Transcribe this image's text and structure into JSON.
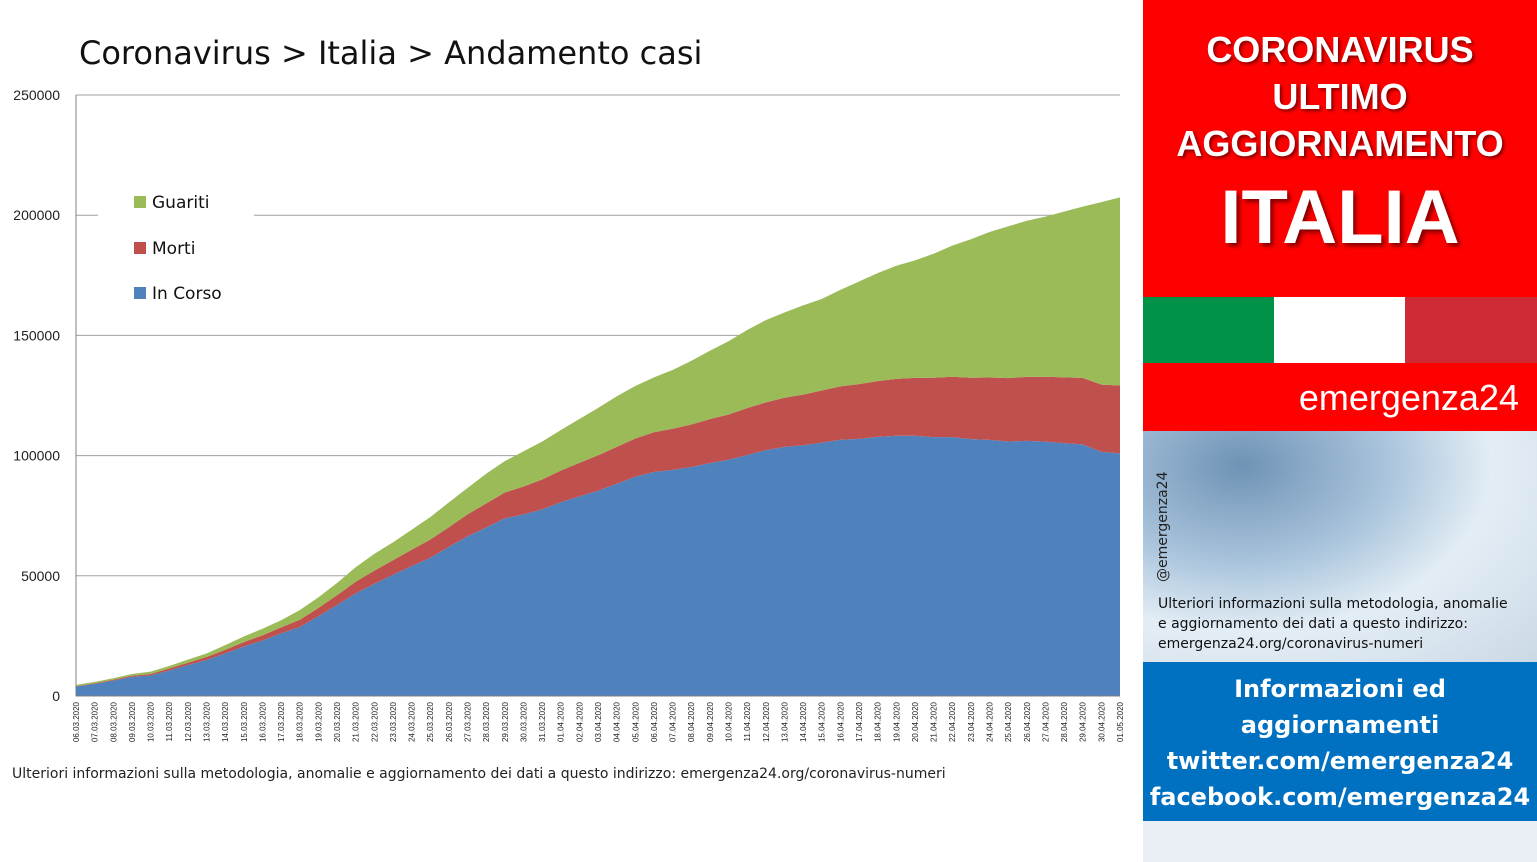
{
  "chart_title": "Coronavirus > Italia > Andamento casi",
  "footnote": "Ulteriori informazioni sulla metodologia, anomalie e aggiornamento dei dati a questo indirizzo: emergenza24.org/coronavirus-numeri",
  "colors": {
    "guariti": "#9bbb59",
    "morti": "#c0504d",
    "in_corso": "#4f81bd",
    "banner_red": "#ff0000",
    "info_blue": "#0070c0",
    "flag_green": "#009246",
    "flag_white": "#ffffff",
    "flag_red": "#ce2b37"
  },
  "chart_data": {
    "type": "area",
    "stacked": true,
    "title": "Coronavirus > Italia > Andamento casi",
    "xlabel": "",
    "ylabel": "",
    "ylim": [
      0,
      250000
    ],
    "yticks": [
      0,
      50000,
      100000,
      150000,
      200000,
      250000
    ],
    "grid": true,
    "legend_position": "upper-left",
    "x": [
      "06.03.2020",
      "07.03.2020",
      "08.03.2020",
      "09.03.2020",
      "10.03.2020",
      "11.03.2020",
      "12.03.2020",
      "13.03.2020",
      "14.03.2020",
      "15.03.2020",
      "16.03.2020",
      "17.03.2020",
      "18.03.2020",
      "19.03.2020",
      "20.03.2020",
      "21.03.2020",
      "22.03.2020",
      "23.03.2020",
      "24.03.2020",
      "25.03.2020",
      "26.03.2020",
      "27.03.2020",
      "28.03.2020",
      "29.03.2020",
      "30.03.2020",
      "31.03.2020",
      "01.04.2020",
      "02.04.2020",
      "03.04.2020",
      "04.04.2020",
      "05.04.2020",
      "06.04.2020",
      "07.04.2020",
      "08.04.2020",
      "09.04.2020",
      "10.04.2020",
      "11.04.2020",
      "12.04.2020",
      "13.04.2020",
      "14.04.2020",
      "15.04.2020",
      "16.04.2020",
      "17.04.2020",
      "18.04.2020",
      "19.04.2020",
      "20.04.2020",
      "21.04.2020",
      "22.04.2020",
      "23.04.2020",
      "24.04.2020",
      "25.04.2020",
      "26.04.2020",
      "27.04.2020",
      "28.04.2020",
      "29.04.2020",
      "30.04.2020",
      "01.05.2020"
    ],
    "series": [
      {
        "name": "In Corso",
        "values": [
          3916,
          5061,
          6387,
          7985,
          8514,
          10590,
          12839,
          14955,
          17750,
          20603,
          23073,
          26062,
          28710,
          33190,
          37860,
          42681,
          46638,
          50418,
          54030,
          57521,
          62013,
          66414,
          70065,
          73880,
          75528,
          77635,
          80572,
          83049,
          85388,
          88274,
          91246,
          93187,
          94067,
          95262,
          96877,
          98273,
          100269,
          102253,
          103616,
          104291,
          105418,
          106607,
          106962,
          107771,
          108257,
          108237,
          107709,
          107699,
          106848,
          106527,
          105847,
          106103,
          105813,
          105205,
          104657,
          101551,
          100943
        ]
      },
      {
        "name": "Morti",
        "values": [
          197,
          233,
          366,
          463,
          631,
          827,
          1016,
          1266,
          1441,
          1809,
          2158,
          2503,
          2978,
          3405,
          4032,
          4825,
          5476,
          6077,
          6820,
          7503,
          8165,
          9134,
          10023,
          10779,
          11591,
          12428,
          13155,
          13915,
          14681,
          15362,
          15887,
          16523,
          17127,
          17669,
          18279,
          18849,
          19468,
          19899,
          20465,
          21067,
          21645,
          22170,
          22745,
          23227,
          23660,
          24114,
          24648,
          25085,
          25549,
          25969,
          26384,
          26644,
          26977,
          27359,
          27682,
          27967,
          28236
        ]
      },
      {
        "name": "Guariti",
        "values": [
          523,
          589,
          622,
          724,
          1004,
          1045,
          1258,
          1439,
          1966,
          2335,
          2749,
          2941,
          4025,
          4440,
          5129,
          6072,
          7024,
          7432,
          8326,
          9362,
          10361,
          10950,
          12384,
          13030,
          14620,
          15729,
          16847,
          18278,
          19758,
          20996,
          21815,
          22837,
          24392,
          26491,
          28470,
          30455,
          32534,
          34211,
          35435,
          37130,
          38092,
          40164,
          42727,
          44927,
          47055,
          48877,
          51600,
          54543,
          57576,
          60498,
          63120,
          64928,
          66624,
          68941,
          71252,
          75945,
          78249
        ]
      }
    ]
  },
  "legend": [
    {
      "label": "Guariti",
      "color": "#9bbb59"
    },
    {
      "label": "Morti",
      "color": "#c0504d"
    },
    {
      "label": "In Corso",
      "color": "#4f81bd"
    }
  ],
  "side": {
    "banner_line1": "CORONAVIRUS",
    "banner_line2": "ULTIMO",
    "banner_line3": "AGGIORNAMENTO",
    "banner_big": "ITALIA",
    "brand": "emergenza24",
    "handle": "@emergenza24",
    "note": "Ulteriori informazioni sulla metodologia, anomalie e aggiornamento dei dati a questo indirizzo: emergenza24.org/coronavirus-numeri",
    "info_line1": "Informazioni ed",
    "info_line2": "aggiornamenti",
    "info_line3": "twitter.com/emergenza24",
    "info_line4": "facebook.com/emergenza24"
  }
}
